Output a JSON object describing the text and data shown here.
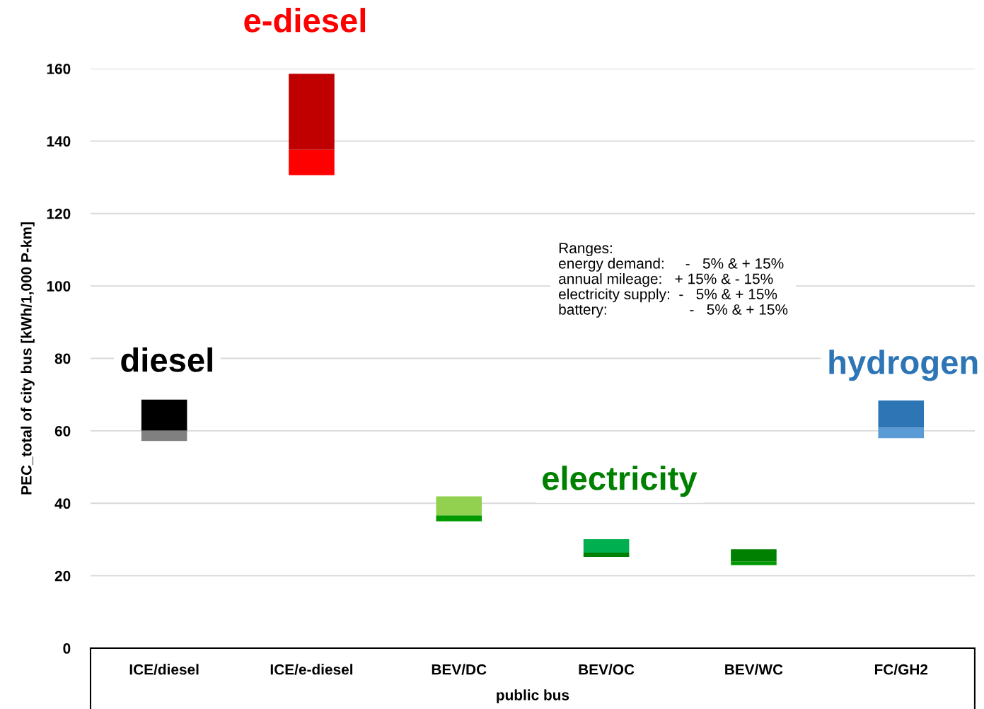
{
  "chart_data": {
    "type": "bar",
    "categories": [
      "ICE/diesel",
      "ICE/e-diesel",
      "BEV/DC",
      "BEV/OC",
      "BEV/WC",
      "FC/GH2"
    ],
    "xlabel": "public bus",
    "ylabel": "PEC_total of city bus [kWh/1,000 P-km]",
    "series": [
      {
        "colors": [
          "#808080",
          "#ff0000",
          "#009900",
          "#008000",
          "#009900",
          "#5b9bd5"
        ],
        "base": [
          57.2,
          130.6,
          35.0,
          25.2,
          22.9,
          58.0
        ],
        "values": [
          2.9,
          7.0,
          1.7,
          1.2,
          1.1,
          2.9
        ]
      },
      {
        "colors": [
          "#000000",
          "#c00000",
          "#92d050",
          "#00b050",
          "#008000",
          "#2e75b6"
        ],
        "base": [
          60.1,
          137.6,
          36.7,
          26.4,
          24.0,
          60.9
        ],
        "values": [
          8.5,
          21.0,
          5.2,
          3.7,
          3.3,
          7.5
        ]
      }
    ],
    "ylim": [
      0,
      160
    ],
    "yticks": [
      0,
      20,
      40,
      60,
      80,
      100,
      120,
      140,
      160
    ],
    "grid": "y",
    "legend": false,
    "annotations": [
      "diesel",
      "e-diesel",
      "electricity",
      "hydrogen",
      "Ranges:\nenergy demand:     -   5% & + 15%\nannual mileage:   + 15% & - 15%\nelectricity supply:  -   5% & + 15%\nbattery:                    -   5% & + 15%"
    ]
  }
}
